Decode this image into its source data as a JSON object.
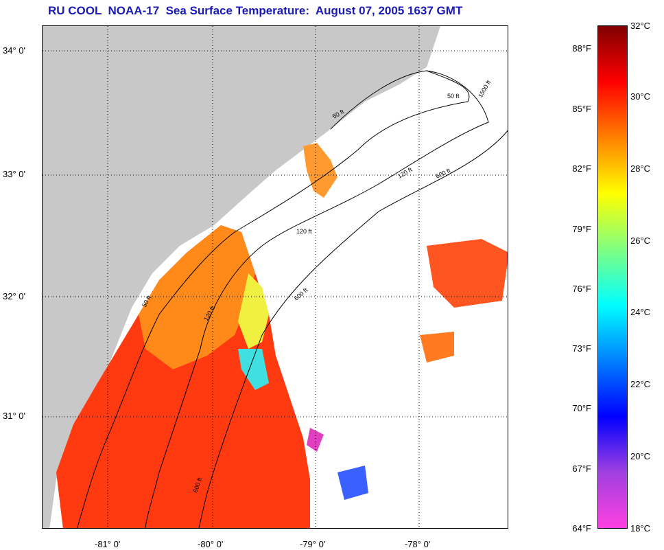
{
  "title": "RU COOL  NOAA-17  Sea Surface Temperature:  August 07, 2005 1637 GMT",
  "map": {
    "latitude_labels": [
      "34° 0'",
      "33° 0'",
      "32° 0'",
      "31° 0'"
    ],
    "longitude_labels": [
      "-81° 0'",
      "-80° 0'",
      "-79° 0'",
      "-78° 0'"
    ],
    "contour_labels": [
      "50 ft",
      "120 ft",
      "600 ft",
      "50 ft",
      "120 ft",
      "600 ft",
      "1500 ft",
      "50 ft",
      "120 ft",
      "600 ft"
    ],
    "colors": {
      "land": "#c8c8c8",
      "no_data": "#ffffff",
      "grid": "#000000"
    }
  },
  "colorbar": {
    "fahrenheit_labels": [
      "88°F",
      "85°F",
      "82°F",
      "79°F",
      "76°F",
      "73°F",
      "70°F",
      "67°F",
      "64°F"
    ],
    "celsius_labels": [
      "32°C",
      "30°C",
      "28°C",
      "26°C",
      "24°C",
      "22°C",
      "20°C",
      "18°C"
    ],
    "range_c": [
      18,
      32
    ],
    "gradient_top_to_bottom": [
      "#800000",
      "#ff0000",
      "#ff8000",
      "#ffff00",
      "#80ff80",
      "#00ffff",
      "#0080ff",
      "#0000ff",
      "#a040e0",
      "#ff40e0"
    ]
  }
}
